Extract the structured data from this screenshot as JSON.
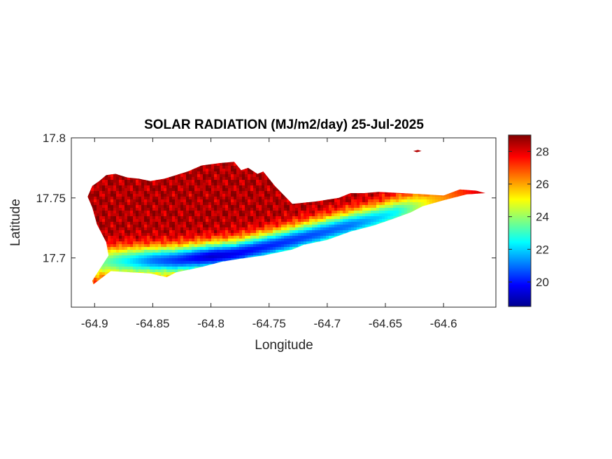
{
  "chart_data": {
    "type": "heatmap",
    "title": "SOLAR RADIATION (MJ/m2/day) 25-Jul-2025",
    "xlabel": "Longitude",
    "ylabel": "Latitude",
    "xlim": [
      -64.92,
      -64.555
    ],
    "ylim": [
      17.659,
      17.8
    ],
    "x_ticks": [
      -64.9,
      -64.85,
      -64.8,
      -64.75,
      -64.7,
      -64.65,
      -64.6
    ],
    "x_tick_labels": [
      "-64.9",
      "-64.85",
      "-64.8",
      "-64.75",
      "-64.7",
      "-64.65",
      "-64.6"
    ],
    "y_ticks": [
      17.7,
      17.75,
      17.8
    ],
    "y_tick_labels": [
      "17.7",
      "17.75",
      "17.8"
    ],
    "colormap": "jet",
    "color_range": [
      18.5,
      29
    ],
    "colorbar_ticks": [
      20,
      22,
      24,
      26,
      28
    ],
    "colorbar_tick_labels": [
      "20",
      "22",
      "24",
      "26",
      "28"
    ],
    "grid": false,
    "island_outline_lonlat": [
      [
        -64.901,
        17.678
      ],
      [
        -64.893,
        17.684
      ],
      [
        -64.886,
        17.689
      ],
      [
        -64.868,
        17.688
      ],
      [
        -64.852,
        17.687
      ],
      [
        -64.838,
        17.684
      ],
      [
        -64.83,
        17.688
      ],
      [
        -64.81,
        17.692
      ],
      [
        -64.79,
        17.697
      ],
      [
        -64.77,
        17.7
      ],
      [
        -64.755,
        17.702
      ],
      [
        -64.73,
        17.707
      ],
      [
        -64.72,
        17.711
      ],
      [
        -64.7,
        17.715
      ],
      [
        -64.68,
        17.722
      ],
      [
        -64.66,
        17.727
      ],
      [
        -64.645,
        17.732
      ],
      [
        -64.628,
        17.738
      ],
      [
        -64.618,
        17.743
      ],
      [
        -64.6,
        17.748
      ],
      [
        -64.58,
        17.753
      ],
      [
        -64.564,
        17.754
      ],
      [
        -64.572,
        17.756
      ],
      [
        -64.586,
        17.757
      ],
      [
        -64.6,
        17.752
      ],
      [
        -64.616,
        17.753
      ],
      [
        -64.636,
        17.754
      ],
      [
        -64.656,
        17.755
      ],
      [
        -64.668,
        17.754
      ],
      [
        -64.68,
        17.754
      ],
      [
        -64.69,
        17.75
      ],
      [
        -64.71,
        17.747
      ],
      [
        -64.73,
        17.745
      ],
      [
        -64.745,
        17.76
      ],
      [
        -64.755,
        17.772
      ],
      [
        -64.76,
        17.77
      ],
      [
        -64.768,
        17.775
      ],
      [
        -64.774,
        17.773
      ],
      [
        -64.78,
        17.78
      ],
      [
        -64.792,
        17.779
      ],
      [
        -64.808,
        17.777
      ],
      [
        -64.82,
        17.772
      ],
      [
        -64.84,
        17.766
      ],
      [
        -64.852,
        17.764
      ],
      [
        -64.862,
        17.766
      ],
      [
        -64.872,
        17.767
      ],
      [
        -64.882,
        17.77
      ],
      [
        -64.89,
        17.769
      ],
      [
        -64.896,
        17.764
      ],
      [
        -64.902,
        17.76
      ],
      [
        -64.906,
        17.751
      ],
      [
        -64.902,
        17.742
      ],
      [
        -64.898,
        17.728
      ],
      [
        -64.89,
        17.713
      ],
      [
        -64.888,
        17.702
      ],
      [
        -64.894,
        17.693
      ],
      [
        -64.902,
        17.681
      ]
    ],
    "cay_outline_lonlat": [
      [
        -64.626,
        17.789
      ],
      [
        -64.622,
        17.79
      ],
      [
        -64.619,
        17.789
      ],
      [
        -64.623,
        17.788
      ]
    ],
    "value_field": {
      "description_note": "",
      "north_value": 28.5,
      "band_min_value": 19.3,
      "band_axis_lonlat": [
        [
          -64.89,
          17.697
        ],
        [
          -64.83,
          17.698
        ],
        [
          -64.78,
          17.703
        ],
        [
          -64.74,
          17.712
        ],
        [
          -64.7,
          17.722
        ],
        [
          -64.66,
          17.732
        ],
        [
          -64.625,
          17.742
        ],
        [
          -64.585,
          17.752
        ]
      ],
      "band_min_by_lon": [
        [
          -64.89,
          23.5
        ],
        [
          -64.85,
          21.0
        ],
        [
          -64.8,
          19.3
        ],
        [
          -64.76,
          20.0
        ],
        [
          -64.72,
          20.5
        ],
        [
          -64.68,
          21.0
        ],
        [
          -64.64,
          22.5
        ],
        [
          -64.61,
          25.5
        ],
        [
          -64.57,
          28.0
        ]
      ]
    }
  }
}
